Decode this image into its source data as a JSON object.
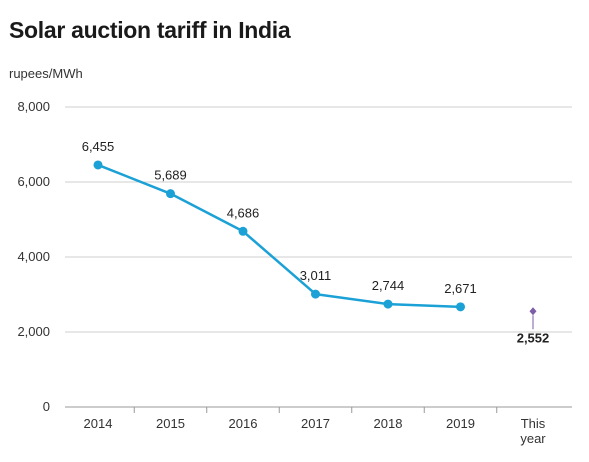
{
  "title": "Solar auction tariff in India",
  "chart_data": {
    "type": "line",
    "ylabel": "rupees/MWh",
    "ylim": [
      0,
      8000
    ],
    "yticks": [
      "0",
      "2,000",
      "4,000",
      "6,000",
      "8,000"
    ],
    "categories": [
      "2014",
      "2015",
      "2016",
      "2017",
      "2018",
      "2019",
      "This year"
    ],
    "series": [
      {
        "values": [
          6455,
          5689,
          4686,
          3011,
          2744,
          2671,
          null
        ],
        "labels": [
          "6,455",
          "5,689",
          "4,686",
          "3,011",
          "2,744",
          "2,671",
          ""
        ],
        "color": "#1ba1d6"
      },
      {
        "values": [
          null,
          null,
          null,
          null,
          null,
          null,
          2552
        ],
        "labels": [
          "",
          "",
          "",
          "",
          "",
          "",
          "2,552"
        ],
        "color": "#7b5ea7"
      }
    ],
    "grid": true,
    "legend": "none"
  }
}
